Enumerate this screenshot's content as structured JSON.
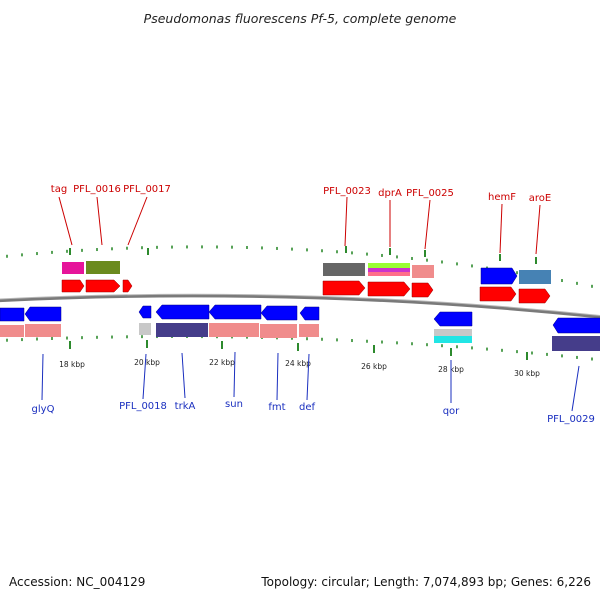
{
  "title": "Pseudomonas fluorescens Pf-5, complete genome",
  "footer": {
    "accession": "Accession: NC_004129",
    "summary": "Topology: circular; Length: 7,074,893 bp; Genes: 6,226"
  },
  "ticks": [
    "18 kbp",
    "20 kbp",
    "22 kbp",
    "24 kbp",
    "26 kbp",
    "28 kbp",
    "30 kbp"
  ],
  "labels_top": [
    "tag",
    "PFL_0016",
    "PFL_0017",
    "PFL_0023",
    "dprA",
    "PFL_0025",
    "hemF",
    "aroE"
  ],
  "labels_bottom": [
    "glyQ",
    "PFL_0018",
    "trkA",
    "sun",
    "fmt",
    "def",
    "qor",
    "PFL_0029"
  ],
  "colors": {
    "backbone": "#7a7a7a",
    "tick": "#2d8a2d",
    "cds_forward": "#ff0000",
    "cds_reverse": "#0000ff",
    "top_label": "#cc0000",
    "bottom_label": "#1a2fbf"
  }
}
